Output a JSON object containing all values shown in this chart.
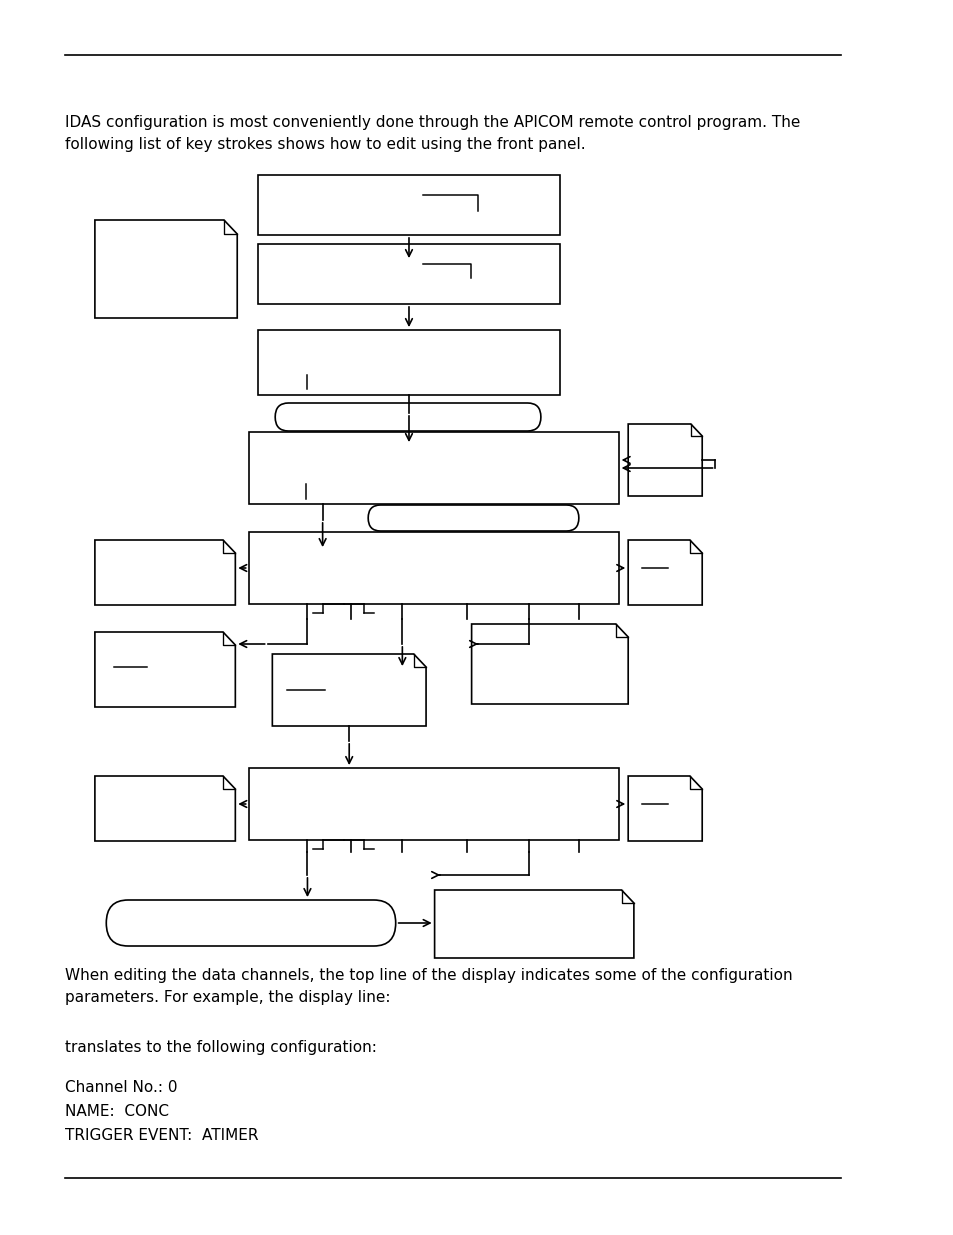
{
  "bg_color": "#ffffff",
  "top_text": "IDAS configuration is most conveniently done through the APICOM remote control program. The\nfollowing list of key strokes shows how to edit using the front panel.",
  "bottom_text1": "When editing the data channels, the top line of the display indicates some of the configuration\nparameters. For example, the display line:",
  "bottom_text2": "translates to the following configuration:",
  "bottom_text3": "Channel No.: 0\nNAME:  CONC\nTRIGGER EVENT:  ATIMER",
  "text_fontsize": 11,
  "line_color": "#000000",
  "page_width": 9.54,
  "page_height": 12.35
}
